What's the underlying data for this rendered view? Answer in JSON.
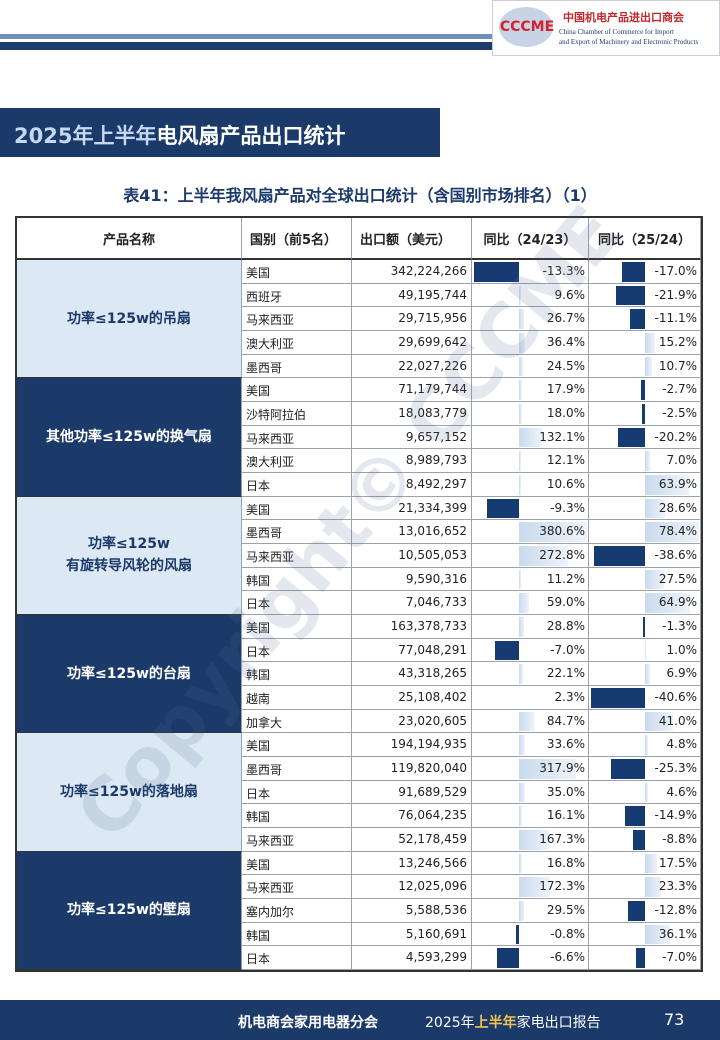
{
  "header": {
    "logo": "CCCME",
    "org_cn": "中国机电产品进出口商会",
    "org_en_1": "China Chamber of Commerce for Import",
    "org_en_2": "and Export of Machinery and Electronic Products"
  },
  "section_title": {
    "highlight": "2025年上半年",
    "rest": "电风扇产品出口统计"
  },
  "table": {
    "title": "表41：上半年我风扇产品对全球出口统计（含国别市场排名）（1）",
    "columns": [
      "产品名称",
      "国别（前5名）",
      "出口额（美元）",
      "同比（24/23）",
      "同比（25/24）"
    ],
    "groups": [
      {
        "product": [
          "功率≤125w的吊扇"
        ],
        "rows": [
          {
            "country": "美国",
            "export": "342,224,266",
            "yoy1": {
              "value": -13.3,
              "label": "-13.3%"
            },
            "yoy2": {
              "value": -17.0,
              "label": "-17.0%"
            }
          },
          {
            "country": "西班牙",
            "export": "49,195,744",
            "yoy1": {
              "value": 9.6,
              "label": "9.6%"
            },
            "yoy2": {
              "value": -21.9,
              "label": "-21.9%"
            }
          },
          {
            "country": "马来西亚",
            "export": "29,715,956",
            "yoy1": {
              "value": 26.7,
              "label": "26.7%"
            },
            "yoy2": {
              "value": -11.1,
              "label": "-11.1%"
            }
          },
          {
            "country": "澳大利亚",
            "export": "29,699,642",
            "yoy1": {
              "value": 36.4,
              "label": "36.4%"
            },
            "yoy2": {
              "value": 15.2,
              "label": "15.2%"
            }
          },
          {
            "country": "墨西哥",
            "export": "22,027,226",
            "yoy1": {
              "value": 24.5,
              "label": "24.5%"
            },
            "yoy2": {
              "value": 10.7,
              "label": "10.7%"
            }
          }
        ]
      },
      {
        "product": [
          "其他功率≤125w的换气扇"
        ],
        "rows": [
          {
            "country": "美国",
            "export": "71,179,744",
            "yoy1": {
              "value": 17.9,
              "label": "17.9%"
            },
            "yoy2": {
              "value": -2.7,
              "label": "-2.7%"
            }
          },
          {
            "country": "沙特阿拉伯",
            "export": "18,083,779",
            "yoy1": {
              "value": 18.0,
              "label": "18.0%"
            },
            "yoy2": {
              "value": -2.5,
              "label": "-2.5%"
            }
          },
          {
            "country": "马来西亚",
            "export": "9,657,152",
            "yoy1": {
              "value": 132.1,
              "label": "132.1%"
            },
            "yoy2": {
              "value": -20.2,
              "label": "-20.2%"
            }
          },
          {
            "country": "澳大利亚",
            "export": "8,989,793",
            "yoy1": {
              "value": 12.1,
              "label": "12.1%"
            },
            "yoy2": {
              "value": 7.0,
              "label": "7.0%"
            }
          },
          {
            "country": "日本",
            "export": "8,492,297",
            "yoy1": {
              "value": 10.6,
              "label": "10.6%"
            },
            "yoy2": {
              "value": 63.9,
              "label": "63.9%"
            }
          }
        ]
      },
      {
        "product": [
          "功率≤125w",
          "有旋转导风轮的风扇"
        ],
        "rows": [
          {
            "country": "美国",
            "export": "21,334,399",
            "yoy1": {
              "value": -9.3,
              "label": "-9.3%"
            },
            "yoy2": {
              "value": 28.6,
              "label": "28.6%"
            }
          },
          {
            "country": "墨西哥",
            "export": "13,016,652",
            "yoy1": {
              "value": 380.6,
              "label": "380.6%"
            },
            "yoy2": {
              "value": 78.4,
              "label": "78.4%"
            }
          },
          {
            "country": "马来西亚",
            "export": "10,505,053",
            "yoy1": {
              "value": 272.8,
              "label": "272.8%"
            },
            "yoy2": {
              "value": -38.6,
              "label": "-38.6%"
            }
          },
          {
            "country": "韩国",
            "export": "9,590,316",
            "yoy1": {
              "value": 11.2,
              "label": "11.2%"
            },
            "yoy2": {
              "value": 27.5,
              "label": "27.5%"
            }
          },
          {
            "country": "日本",
            "export": "7,046,733",
            "yoy1": {
              "value": 59.0,
              "label": "59.0%"
            },
            "yoy2": {
              "value": 64.9,
              "label": "64.9%"
            }
          }
        ]
      },
      {
        "product": [
          "功率≤125w的台扇"
        ],
        "rows": [
          {
            "country": "美国",
            "export": "163,378,733",
            "yoy1": {
              "value": 28.8,
              "label": "28.8%"
            },
            "yoy2": {
              "value": -1.3,
              "label": "-1.3%"
            }
          },
          {
            "country": "日本",
            "export": "77,048,291",
            "yoy1": {
              "value": -7.0,
              "label": "-7.0%"
            },
            "yoy2": {
              "value": 1.0,
              "label": "1.0%"
            }
          },
          {
            "country": "韩国",
            "export": "43,318,265",
            "yoy1": {
              "value": 22.1,
              "label": "22.1%"
            },
            "yoy2": {
              "value": 6.9,
              "label": "6.9%"
            }
          },
          {
            "country": "越南",
            "export": "25,108,402",
            "yoy1": {
              "value": 2.3,
              "label": "2.3%"
            },
            "yoy2": {
              "value": -40.6,
              "label": "-40.6%"
            }
          },
          {
            "country": "加拿大",
            "export": "23,020,605",
            "yoy1": {
              "value": 84.7,
              "label": "84.7%"
            },
            "yoy2": {
              "value": 41.0,
              "label": "41.0%"
            }
          }
        ]
      },
      {
        "product": [
          "功率≤125w的落地扇"
        ],
        "rows": [
          {
            "country": "美国",
            "export": "194,194,935",
            "yoy1": {
              "value": 33.6,
              "label": "33.6%"
            },
            "yoy2": {
              "value": 4.8,
              "label": "4.8%"
            }
          },
          {
            "country": "墨西哥",
            "export": "119,820,040",
            "yoy1": {
              "value": 317.9,
              "label": "317.9%"
            },
            "yoy2": {
              "value": -25.3,
              "label": "-25.3%"
            }
          },
          {
            "country": "日本",
            "export": "91,689,529",
            "yoy1": {
              "value": 35.0,
              "label": "35.0%"
            },
            "yoy2": {
              "value": 4.6,
              "label": "4.6%"
            }
          },
          {
            "country": "韩国",
            "export": "76,064,235",
            "yoy1": {
              "value": 16.1,
              "label": "16.1%"
            },
            "yoy2": {
              "value": -14.9,
              "label": "-14.9%"
            }
          },
          {
            "country": "马来西亚",
            "export": "52,178,459",
            "yoy1": {
              "value": 167.3,
              "label": "167.3%"
            },
            "yoy2": {
              "value": -8.8,
              "label": "-8.8%"
            }
          }
        ]
      },
      {
        "product": [
          "功率≤125w的壁扇"
        ],
        "rows": [
          {
            "country": "美国",
            "export": "13,246,566",
            "yoy1": {
              "value": 16.8,
              "label": "16.8%"
            },
            "yoy2": {
              "value": 17.5,
              "label": "17.5%"
            }
          },
          {
            "country": "马来西亚",
            "export": "12,025,096",
            "yoy1": {
              "value": 172.3,
              "label": "172.3%"
            },
            "yoy2": {
              "value": 23.3,
              "label": "23.3%"
            }
          },
          {
            "country": "塞内加尔",
            "export": "5,588,536",
            "yoy1": {
              "value": 29.5,
              "label": "29.5%"
            },
            "yoy2": {
              "value": -12.8,
              "label": "-12.8%"
            }
          },
          {
            "country": "韩国",
            "export": "5,160,691",
            "yoy1": {
              "value": -0.8,
              "label": "-0.8%"
            },
            "yoy2": {
              "value": 36.1,
              "label": "36.1%"
            }
          },
          {
            "country": "日本",
            "export": "4,593,299",
            "yoy1": {
              "value": -6.6,
              "label": "-6.6%"
            },
            "yoy2": {
              "value": -7.0,
              "label": "-7.0%"
            }
          }
        ]
      }
    ]
  },
  "watermark": "Copyright© CCCME",
  "footer": {
    "division": "机电商会家用电器分会",
    "report_pre": "2025年",
    "report_highlight": "上半年",
    "report_post": "家电出口报告",
    "page": "73"
  }
}
